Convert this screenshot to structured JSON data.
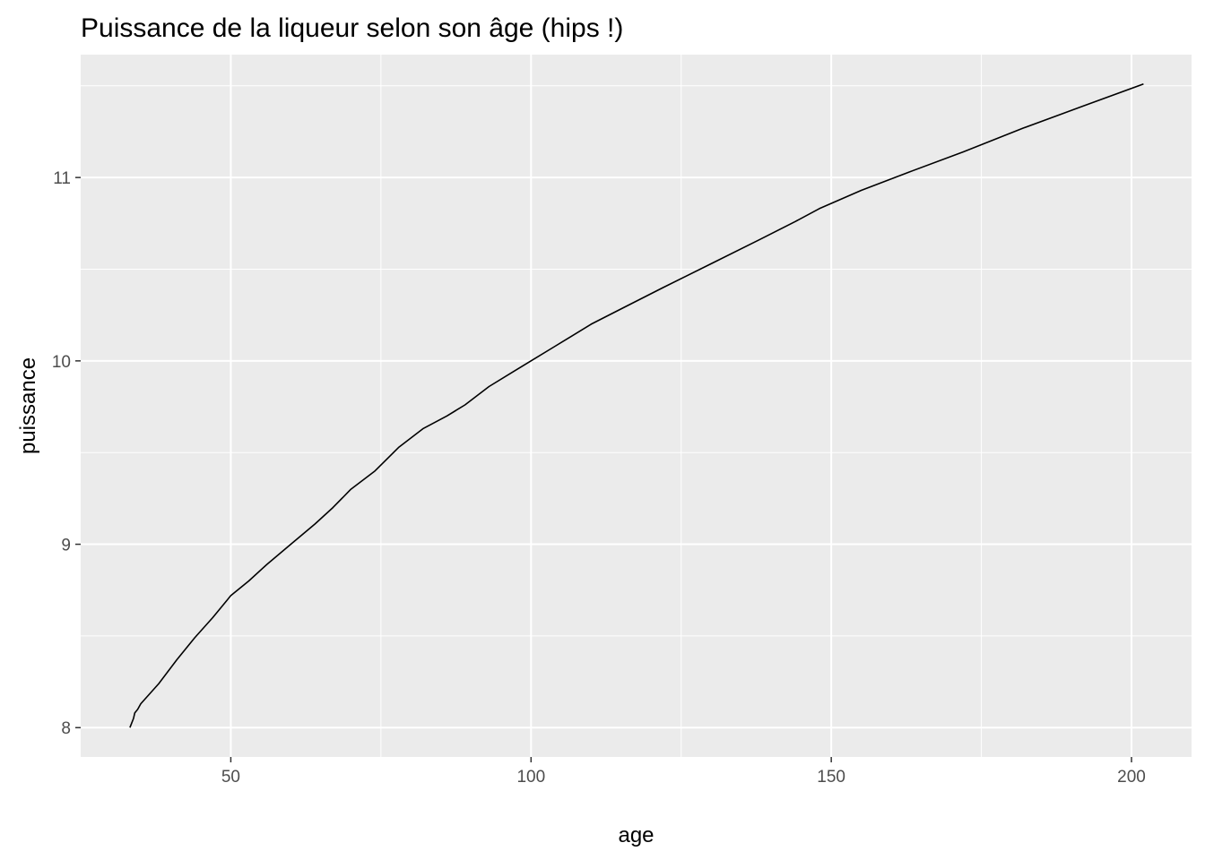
{
  "chart_data": {
    "type": "line",
    "title": "Puissance de la liqueur selon son âge (hips !)",
    "xlabel": "age",
    "ylabel": "puissance",
    "xlim": [
      25,
      210
    ],
    "ylim": [
      7.84,
      11.67
    ],
    "x_ticks": [
      50,
      100,
      150,
      200
    ],
    "y_ticks": [
      8,
      9,
      10,
      11
    ],
    "x_tick_labels": [
      "50",
      "100",
      "150",
      "200"
    ],
    "y_tick_labels": [
      "8",
      "9",
      "10",
      "11"
    ],
    "x_minor_breaks": [
      75,
      125,
      175
    ],
    "y_minor_breaks": [
      8.5,
      9.5,
      10.5,
      11.5
    ],
    "grid": true,
    "panel_background": "#ebebeb",
    "grid_color": "#ffffff",
    "line_color": "#000000",
    "series": [
      {
        "x": [
          33.2,
          33.8,
          34.0,
          34.5,
          35,
          38,
          41,
          44,
          47,
          50,
          53,
          56,
          60,
          64,
          67,
          70,
          74,
          78,
          82,
          86,
          89,
          93,
          97,
          100,
          104,
          110,
          116,
          122,
          130,
          138,
          144,
          148,
          155,
          163,
          172,
          182,
          192,
          202
        ],
        "y": [
          8.0,
          8.05,
          8.08,
          8.1,
          8.13,
          8.24,
          8.37,
          8.49,
          8.6,
          8.72,
          8.8,
          8.89,
          9.0,
          9.11,
          9.2,
          9.3,
          9.4,
          9.53,
          9.63,
          9.7,
          9.76,
          9.86,
          9.94,
          10.0,
          10.08,
          10.2,
          10.3,
          10.4,
          10.53,
          10.66,
          10.76,
          10.83,
          10.93,
          11.03,
          11.14,
          11.27,
          11.39,
          11.51
        ]
      }
    ]
  }
}
